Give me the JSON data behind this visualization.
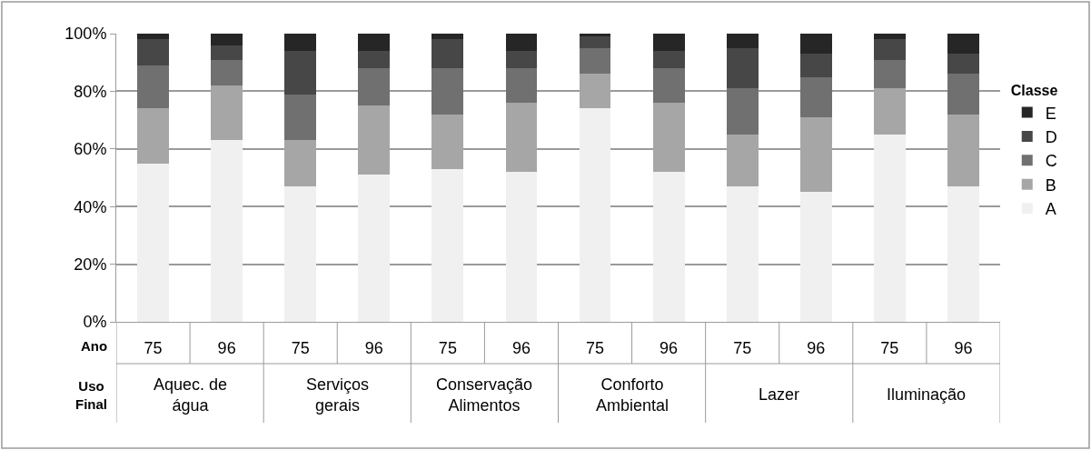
{
  "chart_data": {
    "type": "bar",
    "stacked": true,
    "categories": [
      "75",
      "96",
      "75",
      "96",
      "75",
      "96",
      "75",
      "96",
      "75",
      "96",
      "75",
      "96"
    ],
    "series": [
      {
        "name": "A",
        "color": "#f0f0f0",
        "values": [
          55,
          63,
          47,
          51,
          53,
          52,
          74,
          52,
          47,
          45,
          65,
          47
        ]
      },
      {
        "name": "B",
        "color": "#a6a6a6",
        "values": [
          19,
          19,
          16,
          24,
          19,
          24,
          12,
          24,
          18,
          26,
          16,
          25
        ]
      },
      {
        "name": "C",
        "color": "#707070",
        "values": [
          15,
          9,
          16,
          13,
          16,
          12,
          9,
          12,
          16,
          14,
          10,
          14
        ]
      },
      {
        "name": "D",
        "color": "#474747",
        "values": [
          9,
          5,
          15,
          6,
          10,
          6,
          4,
          6,
          14,
          8,
          7,
          7
        ]
      },
      {
        "name": "E",
        "color": "#262626",
        "values": [
          2,
          4,
          6,
          6,
          2,
          6,
          1,
          6,
          5,
          7,
          2,
          7
        ]
      }
    ],
    "legend_title": "Classe",
    "legend": "right",
    "grid": "y",
    "ylim": [
      0,
      100
    ],
    "yticks": [
      {
        "value": 0,
        "label": "0%"
      },
      {
        "value": 20,
        "label": "20%"
      },
      {
        "value": 40,
        "label": "40%"
      },
      {
        "value": 60,
        "label": "60%"
      },
      {
        "value": 80,
        "label": "80%"
      },
      {
        "value": 100,
        "label": "100%"
      }
    ],
    "annotations": [
      "Ano",
      "Uso Final",
      "Aquec. de água",
      "Serviços gerais",
      "Conservação Alimentos",
      "Conforto Ambiental",
      "Lazer",
      "Iluminação"
    ]
  }
}
